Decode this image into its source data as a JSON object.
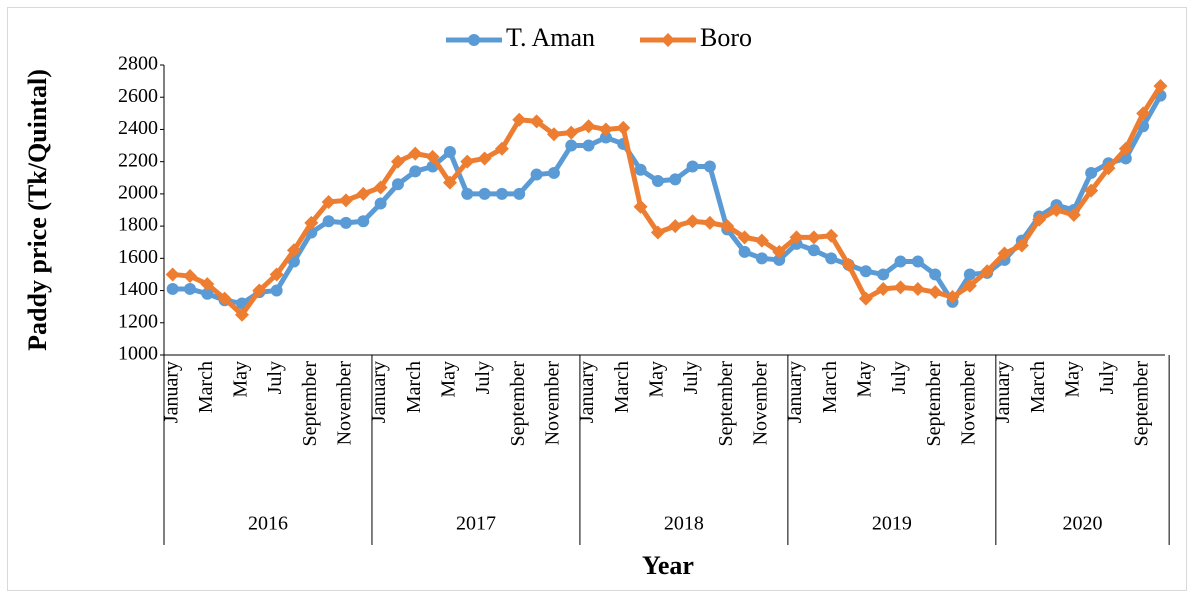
{
  "chart_data": {
    "type": "line",
    "y_label": "Paddy price  (Tk/Quintal)",
    "x_label": "Year",
    "categories": [
      "January",
      null,
      "March",
      null,
      "May",
      null,
      "July",
      null,
      "September",
      null,
      "November",
      null,
      "January",
      null,
      "March",
      null,
      "May",
      null,
      "July",
      null,
      "September",
      null,
      "November",
      null,
      "January",
      null,
      "March",
      null,
      "May",
      null,
      "July",
      null,
      "September",
      null,
      "November",
      null,
      "January",
      null,
      "March",
      null,
      "May",
      null,
      "July",
      null,
      "September",
      null,
      "November",
      null,
      "January",
      null,
      "March",
      null,
      "May",
      null,
      "July",
      null,
      "September",
      null
    ],
    "years": [
      "2016",
      "2017",
      "2018",
      "2019",
      "2020"
    ],
    "series": [
      {
        "name": "T. Aman",
        "color": "#5b9bd5",
        "marker": "circle",
        "values": [
          1410,
          1410,
          1380,
          1340,
          1320,
          1390,
          1400,
          1580,
          1760,
          1830,
          1820,
          1830,
          1940,
          2060,
          2140,
          2170,
          2260,
          2000,
          2000,
          2000,
          2000,
          2120,
          2130,
          2300,
          2300,
          2350,
          2310,
          2150,
          2080,
          2090,
          2170,
          2170,
          1780,
          1640,
          1600,
          1590,
          1690,
          1650,
          1600,
          1560,
          1520,
          1500,
          1580,
          1580,
          1500,
          1330,
          1500,
          1510,
          1590,
          1710,
          1860,
          1930,
          1900,
          2130,
          2190,
          2220,
          2420,
          2610
        ]
      },
      {
        "name": "Boro",
        "color": "#ed7d31",
        "marker": "diamond",
        "values": [
          1500,
          1490,
          1440,
          1350,
          1250,
          1400,
          1500,
          1650,
          1820,
          1950,
          1960,
          2000,
          2040,
          2200,
          2250,
          2230,
          2070,
          2200,
          2220,
          2280,
          2460,
          2450,
          2370,
          2380,
          2420,
          2400,
          2410,
          1920,
          1760,
          1800,
          1830,
          1820,
          1800,
          1730,
          1710,
          1640,
          1730,
          1730,
          1740,
          1560,
          1350,
          1410,
          1420,
          1410,
          1390,
          1360,
          1430,
          1520,
          1630,
          1680,
          1840,
          1900,
          1870,
          2020,
          2160,
          2280,
          2500,
          2670
        ]
      }
    ],
    "ylim": [
      1000,
      2800
    ],
    "yticks": [
      1000,
      1200,
      1400,
      1600,
      1800,
      2000,
      2200,
      2400,
      2600,
      2800
    ],
    "legend": "top"
  }
}
